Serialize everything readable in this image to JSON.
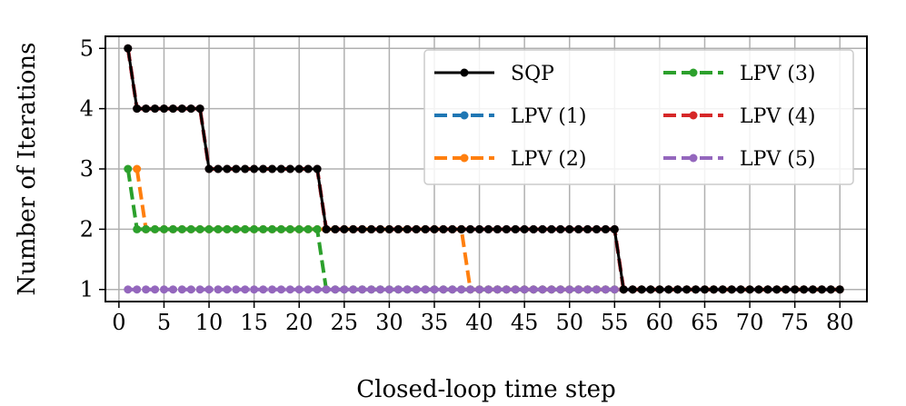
{
  "chart_data": {
    "type": "line",
    "xlabel": "Closed-loop time step",
    "ylabel": "Number of Iterations",
    "xlim": [
      -1.5,
      83
    ],
    "ylim": [
      0.8,
      5.2
    ],
    "xticks": [
      0,
      5,
      10,
      15,
      20,
      25,
      30,
      35,
      40,
      45,
      50,
      55,
      60,
      65,
      70,
      75,
      80
    ],
    "yticks": [
      1,
      2,
      3,
      4,
      5
    ],
    "grid": true,
    "legend_position": "upper-right",
    "legend_columns": 2,
    "series": [
      {
        "name": "SQP",
        "color": "#000000",
        "dashed": false,
        "width": 3,
        "segments": [
          {
            "from": 1,
            "to": 1,
            "value": 5
          },
          {
            "from": 2,
            "to": 9,
            "value": 4
          },
          {
            "from": 10,
            "to": 22,
            "value": 3
          },
          {
            "from": 23,
            "to": 55,
            "value": 2
          },
          {
            "from": 56,
            "to": 80,
            "value": 1
          }
        ]
      },
      {
        "name": "LPV (1)",
        "color": "#1f77b4",
        "dashed": true,
        "width": 4,
        "segments": [
          {
            "from": 1,
            "to": 1,
            "value": 5
          },
          {
            "from": 2,
            "to": 9,
            "value": 4
          },
          {
            "from": 10,
            "to": 22,
            "value": 3
          },
          {
            "from": 23,
            "to": 55,
            "value": 2
          },
          {
            "from": 56,
            "to": 80,
            "value": 1
          }
        ]
      },
      {
        "name": "LPV (2)",
        "color": "#ff7f0e",
        "dashed": true,
        "width": 4,
        "segments": [
          {
            "from": 2,
            "to": 2,
            "value": 3
          },
          {
            "from": 3,
            "to": 38,
            "value": 2
          },
          {
            "from": 39,
            "to": 80,
            "value": 1
          }
        ]
      },
      {
        "name": "LPV (3)",
        "color": "#2ca02c",
        "dashed": true,
        "width": 4,
        "segments": [
          {
            "from": 1,
            "to": 1,
            "value": 3
          },
          {
            "from": 2,
            "to": 22,
            "value": 2
          },
          {
            "from": 23,
            "to": 80,
            "value": 1
          }
        ]
      },
      {
        "name": "LPV (4)",
        "color": "#d62728",
        "dashed": true,
        "width": 4,
        "segments": [
          {
            "from": 1,
            "to": 1,
            "value": 5
          },
          {
            "from": 2,
            "to": 9,
            "value": 4
          },
          {
            "from": 10,
            "to": 22,
            "value": 3
          },
          {
            "from": 23,
            "to": 55,
            "value": 2
          },
          {
            "from": 56,
            "to": 80,
            "value": 1
          }
        ]
      },
      {
        "name": "LPV (5)",
        "color": "#9467bd",
        "dashed": true,
        "width": 4,
        "segments": [
          {
            "from": 1,
            "to": 80,
            "value": 1
          }
        ]
      }
    ]
  }
}
